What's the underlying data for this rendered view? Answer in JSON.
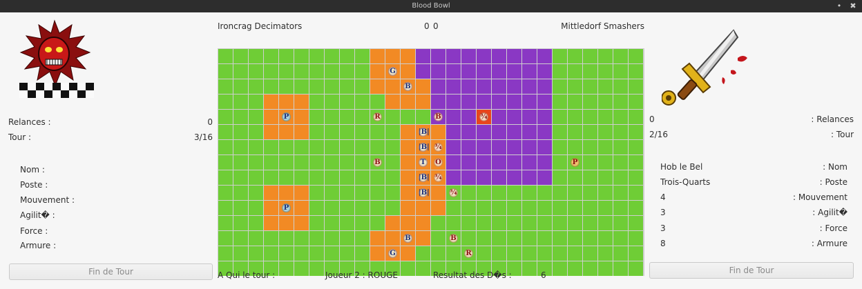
{
  "window": {
    "title": "Blood Bowl",
    "minimize_glyph": "•",
    "close_glyph": "✖"
  },
  "header": {
    "team_left": "Ironcrag Decimators",
    "score_left": "0",
    "score_right": "0",
    "team_right": "Mittledorf Smashers"
  },
  "left_panel": {
    "logo": "demon-skull-logo",
    "stats": [
      {
        "label": "Relances :",
        "value": "0"
      },
      {
        "label": "Tour :",
        "value": "3/16"
      }
    ],
    "player_labels": [
      "Nom :",
      "Poste :",
      "Mouvement :",
      "Agilit� :",
      "Force :",
      "Armure :"
    ],
    "end_turn": "Fin de Tour"
  },
  "right_panel": {
    "logo": "bloody-sword-logo",
    "stats": [
      {
        "label": ": Relances",
        "value": "0"
      },
      {
        "label": ": Tour",
        "value": "2/16"
      }
    ],
    "player": [
      {
        "label": ": Nom",
        "value": "Hob le Bel"
      },
      {
        "label": ": Poste",
        "value": "Trois-Quarts"
      },
      {
        "label": ": Mouvement",
        "value": "4"
      },
      {
        "label": ": Agilit�",
        "value": "3"
      },
      {
        "label": ": Force",
        "value": "3"
      },
      {
        "label": ": Armure",
        "value": "8"
      }
    ],
    "end_turn": "Fin de Tour"
  },
  "footer": {
    "turn_label": "A Qui le tour :",
    "turn_value": "Joueur 2 : ROUGE",
    "dice_label": "Resultat des D�s :",
    "dice_value": "6"
  },
  "board": {
    "cols": 28,
    "rows": 15,
    "colors": {
      "G": "#6fcd36",
      "O": "#f28a24",
      "P": "#8a38c4",
      "R": "#e8451c"
    },
    "grid": [
      "GGGGGGGGGGOOOPPPPPPPPPGGGGGG",
      "GGGGGGGGGGOOOPPPPPPPPPGGGGGG",
      "GGGGGGGGGGOOOOPPPPPPPPGGGGGG",
      "GGGOOOGGGGGOOOPPPPPPPPGGGGGG",
      "GGGOOOGGGGGGGGPPPRPPPPGGGGGG",
      "GGGOOOGGGGGGOOOPPPPPPPGGGGGG",
      "GGGGGGGGGGGGOOOPPPPPPPGGGGGG",
      "GGGGGGGGGGGGOOOPPPPPPPGGGGGG",
      "GGGGGGGGGGGGOOOPPPPPPPGGGGGG",
      "GGGOOOGGGGGGOOOGGGGGGGGGGGGG",
      "GGGOOOGGGGGGOOOGGGGGGGGGGGGG",
      "GGGOOOGGGGGOOOGGGGGGGGGGGGGG",
      "GGGGGGGGGGOOOOGGGGGGGGGGGGGG",
      "GGGGGGGGGGOOOGGGGGGGGGGGGGGG",
      "GGGGGGGGGGGGGGGGGGGGGGGGGGGG"
    ],
    "pieces": [
      {
        "r": 1,
        "c": 11,
        "t": "G",
        "k": "blue"
      },
      {
        "r": 2,
        "c": 12,
        "t": "B",
        "k": "blue"
      },
      {
        "r": 4,
        "c": 4,
        "t": "P",
        "k": "pb"
      },
      {
        "r": 4,
        "c": 10,
        "t": "R",
        "k": "red"
      },
      {
        "r": 4,
        "c": 14,
        "t": "B",
        "k": "red"
      },
      {
        "r": 4,
        "c": 17,
        "t": "¾",
        "k": "red"
      },
      {
        "r": 5,
        "c": 13,
        "t": "|B|",
        "k": "blue"
      },
      {
        "r": 6,
        "c": 13,
        "t": "|B|",
        "k": "blue"
      },
      {
        "r": 6,
        "c": 14,
        "t": "¾",
        "k": "red"
      },
      {
        "r": 7,
        "c": 10,
        "t": "B",
        "k": "red"
      },
      {
        "r": 7,
        "c": 13,
        "t": "T",
        "k": "blue"
      },
      {
        "r": 7,
        "c": 14,
        "t": "O",
        "k": "red"
      },
      {
        "r": 7,
        "c": 23,
        "t": "P",
        "k": "pr"
      },
      {
        "r": 8,
        "c": 13,
        "t": "|B|",
        "k": "blue"
      },
      {
        "r": 8,
        "c": 14,
        "t": "¾",
        "k": "red"
      },
      {
        "r": 9,
        "c": 13,
        "t": "|B|",
        "k": "blue"
      },
      {
        "r": 9,
        "c": 15,
        "t": "¾",
        "k": "red"
      },
      {
        "r": 10,
        "c": 4,
        "t": "P",
        "k": "pb"
      },
      {
        "r": 12,
        "c": 12,
        "t": "B",
        "k": "blue"
      },
      {
        "r": 12,
        "c": 15,
        "t": "B",
        "k": "red"
      },
      {
        "r": 13,
        "c": 11,
        "t": "G",
        "k": "blue"
      },
      {
        "r": 13,
        "c": 16,
        "t": "R",
        "k": "red"
      }
    ]
  }
}
